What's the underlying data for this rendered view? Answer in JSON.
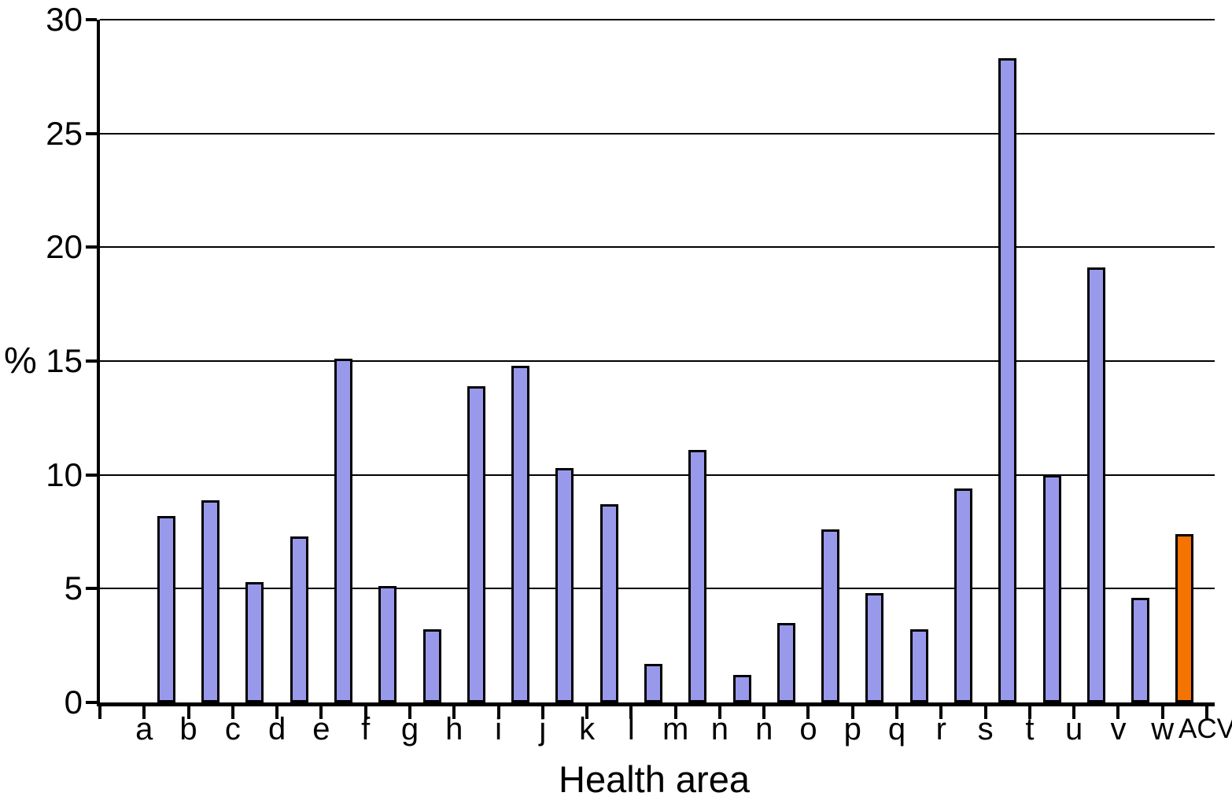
{
  "chart_data": {
    "type": "bar",
    "title": "",
    "xlabel": "Health area",
    "ylabel": "%",
    "ylim": [
      0,
      30
    ],
    "y_ticks": [
      0,
      5,
      10,
      15,
      20,
      25,
      30
    ],
    "grid": "horizontal black gridlines at every 5 units, spanning full plot width",
    "legend": "none",
    "categories": [
      "a",
      "b",
      "c",
      "d",
      "e",
      "f",
      "g",
      "h",
      "i",
      "j",
      "k",
      "l",
      "m",
      "n",
      "n",
      "o",
      "p",
      "q",
      "r",
      "s",
      "t",
      "u",
      "v",
      "w",
      "ACV"
    ],
    "values": [
      null,
      8.2,
      8.9,
      5.3,
      7.3,
      15.1,
      5.1,
      3.2,
      13.9,
      14.8,
      10.3,
      8.7,
      1.7,
      11.1,
      1.2,
      3.5,
      7.6,
      4.8,
      3.2,
      9.4,
      28.3,
      10.0,
      19.1,
      4.6,
      7.4
    ],
    "highlight_category": "ACV",
    "colors": {
      "bar": "#9999EB",
      "highlight": "#F57300",
      "axis": "#000000",
      "background": "#FFFFFF"
    },
    "note": "24 plain bars drawn between x-axis tick marks; category tick labels sit at slot boundaries so each bar lies just left of its label tick; first slot (category 'a') has no bar; the ACV bar is highlighted orange."
  }
}
